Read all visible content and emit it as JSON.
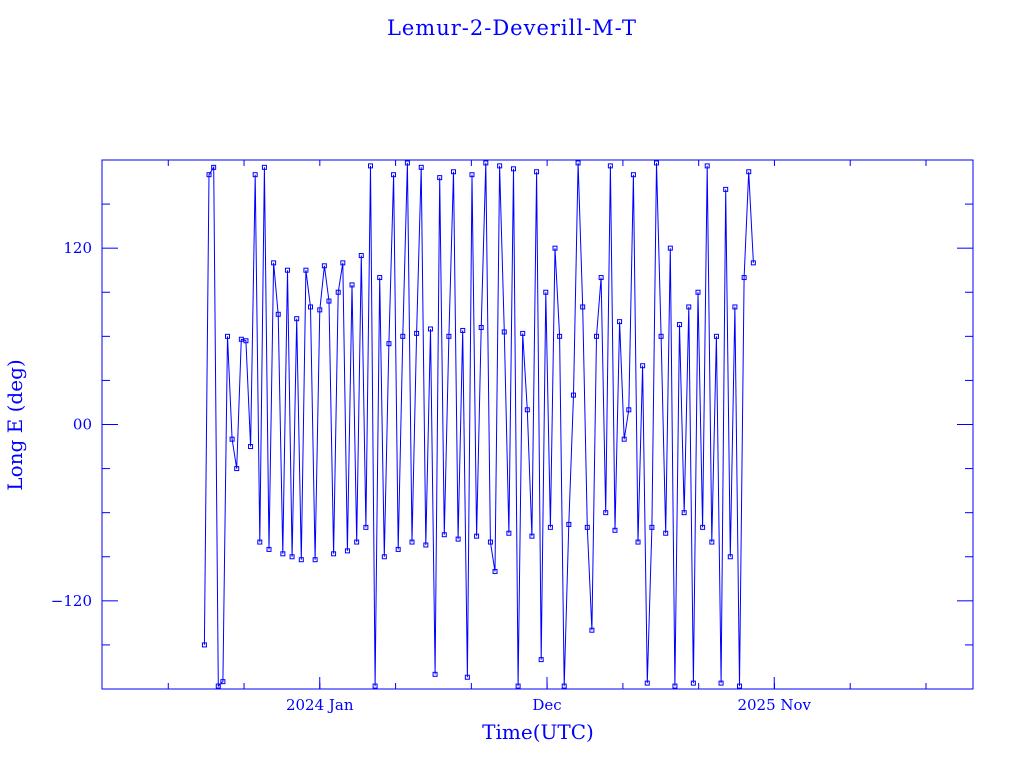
{
  "chart_data": {
    "type": "line",
    "title": "Lemur-2-Deverill-M-T",
    "xlabel": "Time(UTC)",
    "ylabel": "Long E (deg)",
    "x_units": "days since 2024-01-01",
    "xlim": [
      -321,
      963
    ],
    "ylim": [
      -180,
      180
    ],
    "y_ticks": [
      120,
      0,
      -120
    ],
    "y_tick_labels": [
      "120",
      "00",
      "−120"
    ],
    "x_ticks": [
      0,
      335,
      670
    ],
    "x_tick_labels": [
      "2024 Jan",
      "Dec",
      "2025 Nov"
    ],
    "grid": false,
    "color": "#0000ff",
    "series": [
      {
        "name": "Long E",
        "x_start": -170,
        "x_step": 6.8,
        "y": [
          -150,
          170,
          175,
          -178,
          -175,
          60,
          -10,
          -30,
          58,
          57,
          -15,
          170,
          -80,
          175,
          -85,
          110,
          75,
          -88,
          105,
          -90,
          72,
          -92,
          105,
          80,
          -92,
          78,
          108,
          84,
          -88,
          90,
          110,
          -86,
          95,
          -80,
          115,
          -70,
          176,
          -178,
          100,
          -90,
          55,
          170,
          -85,
          60,
          178,
          -80,
          62,
          175,
          -82,
          65,
          -170,
          168,
          -75,
          60,
          172,
          -78,
          64,
          -172,
          170,
          -76,
          66,
          178,
          -80,
          -100,
          176,
          63,
          -74,
          174,
          -178,
          62,
          10,
          -76,
          172,
          -160,
          90,
          -70,
          120,
          60,
          -178,
          -68,
          20,
          178,
          80,
          -70,
          -140,
          60,
          100,
          -60,
          176,
          -72,
          70,
          -10,
          10,
          170,
          -80,
          40,
          -176,
          -70,
          178,
          60,
          -74,
          120,
          -178,
          68,
          -60,
          80,
          -176,
          90,
          -70,
          176,
          -80,
          60,
          -176,
          160,
          -90,
          80,
          -178,
          100,
          172,
          110
        ]
      }
    ]
  }
}
